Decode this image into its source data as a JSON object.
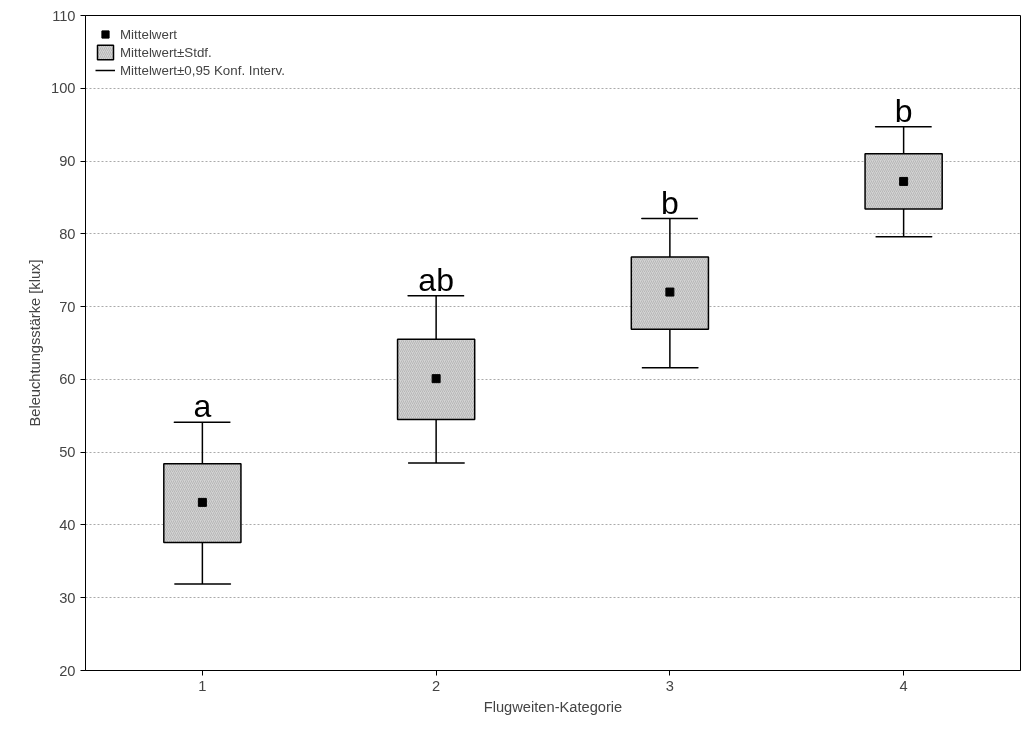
{
  "chart_data": {
    "type": "scatter",
    "xlabel": "Flugweiten-Kategorie",
    "ylabel": "Beleuchtungsstärke [klux]",
    "categories": [
      "1",
      "2",
      "3",
      "4"
    ],
    "series": [
      {
        "name": "Mittelwert",
        "marker": "square",
        "color": "#000000",
        "values": [
          43.1,
          60.1,
          72.0,
          87.2
        ],
        "errors": [
          [
            31.9,
            54.1
          ],
          [
            48.5,
            71.5
          ],
          [
            61.6,
            82.1
          ],
          [
            79.6,
            94.7
          ]
        ]
      },
      {
        "name": "Mittelwert±Stdf.",
        "type": "bar",
        "color": "#d3d3d3",
        "base": [
          37.6,
          54.5,
          66.9,
          83.4
        ],
        "values": [
          10.8,
          11.0,
          9.9,
          7.6
        ]
      },
      {
        "name": "Mittelwert±0,95 Konf. Interv.",
        "marker": "none",
        "color": "#000000",
        "values": [
          null,
          null,
          null,
          null
        ]
      }
    ],
    "annotations": [
      {
        "text": "a",
        "x": "1",
        "y": 54.1
      },
      {
        "text": "ab",
        "x": "2",
        "y": 71.5
      },
      {
        "text": "b",
        "x": "3",
        "y": 82.1
      },
      {
        "text": "b",
        "x": "4",
        "y": 94.7
      }
    ],
    "ylim": [
      20,
      110
    ],
    "yticks": [
      20,
      30,
      40,
      50,
      60,
      70,
      80,
      90,
      100,
      110
    ],
    "grid": "y",
    "legend": "top left"
  }
}
